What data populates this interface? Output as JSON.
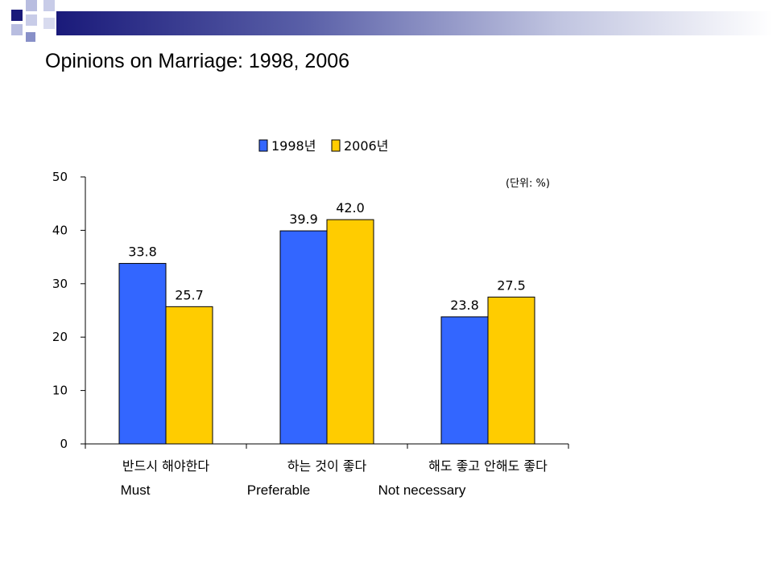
{
  "title": "Opinions on Marriage: 1998, 2006",
  "unit_note": "(단위: %)",
  "colors": {
    "1998": "#3366FF",
    "2006": "#FFCC00",
    "deco_dark": "#1a1a7a",
    "deco_light": "#a0a8d8"
  },
  "chart_data": {
    "type": "bar",
    "categories": [
      "반드시 해야한다",
      "하는 것이 좋다",
      "해도 좋고 안해도 좋다"
    ],
    "categories_en": [
      "Must",
      "Preferable",
      "Not necessary"
    ],
    "series": [
      {
        "name": "1998년",
        "values": [
          33.8,
          39.9,
          23.8
        ]
      },
      {
        "name": "2006년",
        "values": [
          25.7,
          42.0,
          27.5
        ]
      }
    ],
    "data_labels": [
      [
        "33.8",
        "39.9",
        "23.8"
      ],
      [
        "25.7",
        "42.0",
        "27.5"
      ]
    ],
    "yticks": [
      "0",
      "10",
      "20",
      "30",
      "40",
      "50"
    ],
    "ylim": [
      0,
      50
    ],
    "legend": "top-center",
    "grid": false
  }
}
